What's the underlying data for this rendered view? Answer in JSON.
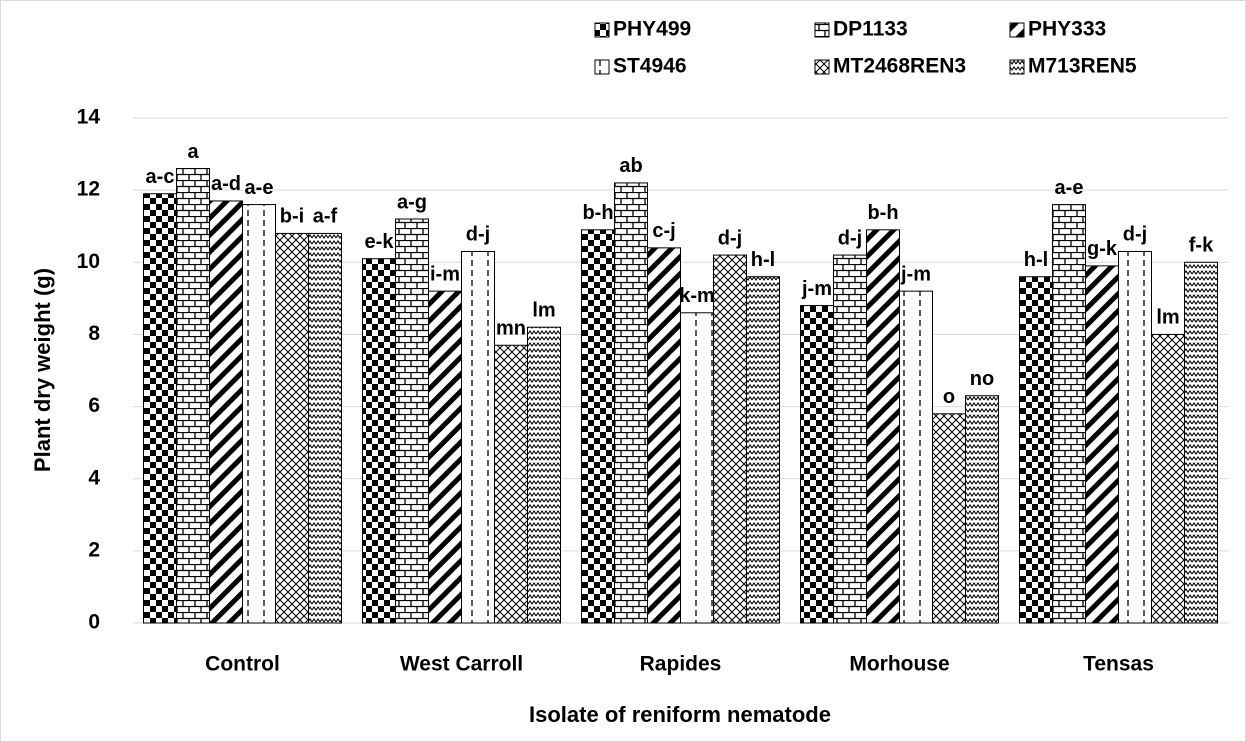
{
  "chart_data": {
    "type": "bar",
    "x_label": "Isolate of reniform nematode",
    "y_label": "Plant dry weight (g)",
    "categories": [
      "Control",
      "West Carroll",
      "Rapides",
      "Morhouse",
      "Tensas"
    ],
    "series": [
      {
        "name": "PHY499",
        "pattern": "checker",
        "color": "#000000",
        "values": [
          11.9,
          10.1,
          10.9,
          8.8,
          9.6
        ],
        "letters": [
          "a-c",
          "e-k",
          "b-h",
          "j-m",
          "h-l"
        ]
      },
      {
        "name": "DP1133",
        "pattern": "brick",
        "color": "#000000",
        "values": [
          12.6,
          11.2,
          12.2,
          10.2,
          11.6
        ],
        "letters": [
          "a",
          "a-g",
          "ab",
          "d-j",
          "a-e"
        ]
      },
      {
        "name": "PHY333",
        "pattern": "diagonal",
        "color": "#000000",
        "values": [
          11.7,
          9.2,
          10.4,
          10.9,
          9.9
        ],
        "letters": [
          "a-d",
          "i-m",
          "c-j",
          "b-h",
          "g-k"
        ]
      },
      {
        "name": "ST4946",
        "pattern": "dashed",
        "color": "#000000",
        "values": [
          11.6,
          10.3,
          8.6,
          9.2,
          10.3
        ],
        "letters": [
          "a-e",
          "d-j",
          "k-m",
          "j-m",
          "d-j"
        ]
      },
      {
        "name": "MT2468REN3",
        "pattern": "crosshatch",
        "color": "#000000",
        "values": [
          10.8,
          7.7,
          10.2,
          5.8,
          8.0
        ],
        "letters": [
          "b-i",
          "mn",
          "d-j",
          "o",
          "lm"
        ]
      },
      {
        "name": "M713REN5",
        "pattern": "wave",
        "color": "#000000",
        "values": [
          10.8,
          8.2,
          9.6,
          6.3,
          10.0
        ],
        "letters": [
          "a-f",
          "lm",
          "h-l",
          "no",
          "f-k"
        ]
      }
    ],
    "ylim": [
      0,
      14
    ],
    "yticks": [
      0,
      2,
      4,
      6,
      8,
      10,
      12,
      14
    ],
    "grid": true,
    "legend": "top-right"
  }
}
